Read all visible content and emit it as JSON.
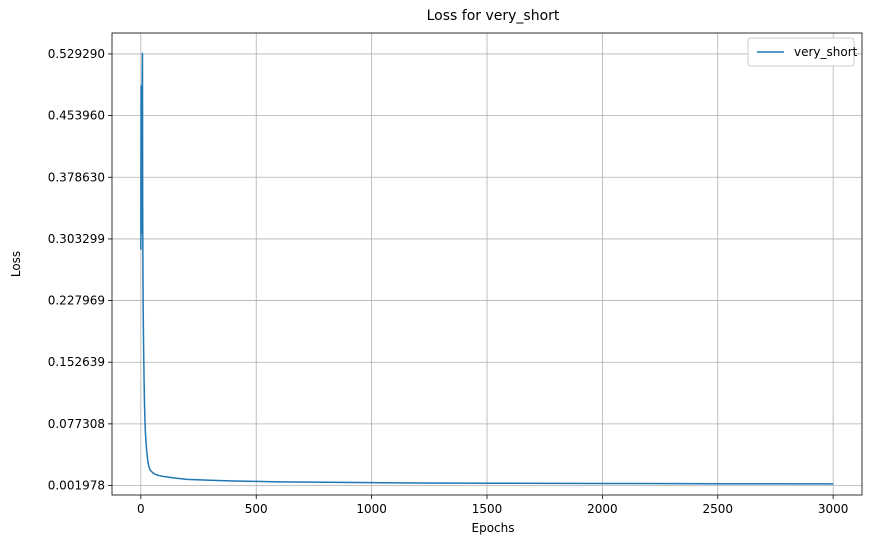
{
  "chart_data": {
    "type": "line",
    "title": "Loss for very_short",
    "xlabel": "Epochs",
    "ylabel": "Loss",
    "xlim": [
      -125,
      3125
    ],
    "ylim": [
      -0.0096,
      0.5549
    ],
    "xticks": [
      0,
      500,
      1000,
      1500,
      2000,
      2500,
      3000
    ],
    "xtick_labels": [
      "0",
      "500",
      "1000",
      "1500",
      "2000",
      "2500",
      "3000"
    ],
    "yticks": [
      0.001978,
      0.077308,
      0.152639,
      0.227969,
      0.303299,
      0.37863,
      0.45396,
      0.52929
    ],
    "ytick_labels": [
      "0.001978",
      "0.077308",
      "0.152639",
      "0.227969",
      "0.303299",
      "0.378630",
      "0.453960",
      "0.529290"
    ],
    "grid": true,
    "legend": {
      "position": "top-right",
      "entries": [
        "very_short"
      ]
    },
    "series": [
      {
        "name": "very_short",
        "color": "#1f77b4",
        "x": [
          0,
          1,
          2,
          3,
          4,
          5,
          6,
          7,
          8,
          9,
          10,
          12,
          14,
          16,
          18,
          20,
          25,
          30,
          35,
          40,
          50,
          60,
          80,
          100,
          150,
          200,
          300,
          400,
          500,
          600,
          800,
          1000,
          1200,
          1500,
          2000,
          2500,
          3000
        ],
        "y": [
          0.29,
          0.49,
          0.31,
          0.43,
          0.35,
          0.4,
          0.48,
          0.53,
          0.34,
          0.27,
          0.22,
          0.17,
          0.13,
          0.1,
          0.08,
          0.065,
          0.045,
          0.032,
          0.025,
          0.021,
          0.018,
          0.016,
          0.014,
          0.013,
          0.011,
          0.0095,
          0.0085,
          0.0075,
          0.007,
          0.0065,
          0.006,
          0.0055,
          0.005,
          0.0048,
          0.0045,
          0.0042,
          0.004
        ]
      }
    ]
  }
}
